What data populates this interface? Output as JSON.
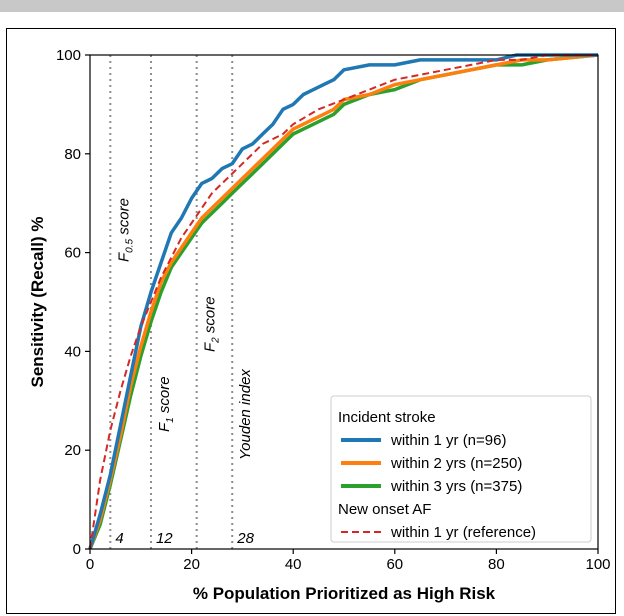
{
  "chart_data": {
    "type": "line",
    "xlabel": "% Population Prioritized as High Risk",
    "ylabel": "Sensitivity (Recall) %",
    "xlim": [
      0,
      100
    ],
    "ylim": [
      0,
      100
    ],
    "xticks": [
      "0",
      "20",
      "40",
      "60",
      "80",
      "100"
    ],
    "yticks": [
      "0",
      "20",
      "40",
      "60",
      "80",
      "100"
    ],
    "grid": false,
    "legend_position": "bottom-right",
    "legend_groups": [
      "Incident stroke",
      "New onset AF"
    ],
    "colors": {
      "stroke_1yr": "#1f77b4",
      "stroke_2yr": "#ff7f0e",
      "stroke_3yr": "#2ca02c",
      "af_1yr": "#d62728",
      "threshold_lines": "#8c8c8c"
    },
    "thresholds": [
      {
        "x": 4,
        "value_label": "4",
        "metric_main": "F",
        "metric_sub": "0.5",
        "metric_rest": " score"
      },
      {
        "x": 12,
        "value_label": "12",
        "metric_main": "F",
        "metric_sub": "1",
        "metric_rest": " score"
      },
      {
        "x": 21,
        "value_label": "",
        "metric_main": "F",
        "metric_sub": "2",
        "metric_rest": " score"
      },
      {
        "x": 28,
        "value_label": "28",
        "metric_main": "Youden index",
        "metric_sub": "",
        "metric_rest": ""
      }
    ],
    "series": [
      {
        "name": "within 1 yr (n=96)",
        "group": "Incident stroke",
        "style": "solid",
        "x": [
          0,
          2,
          4,
          6,
          8,
          10,
          12,
          14,
          16,
          18,
          20,
          22,
          24,
          26,
          28,
          30,
          32,
          34,
          36,
          38,
          40,
          42,
          44,
          46,
          48,
          50,
          55,
          60,
          65,
          70,
          75,
          80,
          84,
          90,
          100
        ],
        "y": [
          0,
          7,
          15,
          25,
          35,
          45,
          52,
          58,
          64,
          67,
          71,
          74,
          75,
          77,
          78,
          81,
          82,
          84,
          86,
          89,
          90,
          92,
          93,
          94,
          95,
          97,
          98,
          98,
          99,
          99,
          99,
          99,
          100,
          100,
          100
        ]
      },
      {
        "name": "within 2 yrs (n=250)",
        "group": "Incident stroke",
        "style": "solid",
        "x": [
          0,
          2,
          4,
          6,
          8,
          10,
          12,
          14,
          16,
          18,
          20,
          22,
          24,
          26,
          28,
          30,
          32,
          34,
          36,
          38,
          40,
          42,
          44,
          46,
          48,
          50,
          55,
          60,
          65,
          70,
          75,
          80,
          85,
          90,
          100
        ],
        "y": [
          0,
          6,
          14,
          23,
          33,
          41,
          48,
          54,
          58,
          61,
          64,
          67,
          69,
          71,
          73,
          75,
          77,
          79,
          81,
          83,
          85,
          86,
          87,
          88,
          89,
          91,
          92,
          94,
          95,
          96,
          97,
          98,
          99,
          99,
          100
        ]
      },
      {
        "name": "within 3 yrs (n=375)",
        "group": "Incident stroke",
        "style": "solid",
        "x": [
          0,
          2,
          4,
          6,
          8,
          10,
          12,
          14,
          16,
          18,
          20,
          22,
          24,
          26,
          28,
          30,
          32,
          34,
          36,
          38,
          40,
          42,
          44,
          46,
          48,
          50,
          55,
          60,
          65,
          70,
          75,
          80,
          85,
          90,
          100
        ],
        "y": [
          0,
          5,
          13,
          22,
          31,
          39,
          46,
          52,
          57,
          60,
          63,
          66,
          68,
          70,
          72,
          74,
          76,
          78,
          80,
          82,
          84,
          85,
          86,
          87,
          88,
          90,
          92,
          93,
          95,
          96,
          97,
          98,
          98,
          99,
          100
        ]
      },
      {
        "name": "within 1 yr (reference)",
        "group": "New onset AF",
        "style": "dashed",
        "x": [
          0,
          2,
          4,
          6,
          8,
          10,
          12,
          14,
          16,
          18,
          20,
          22,
          24,
          26,
          28,
          30,
          32,
          34,
          36,
          38,
          40,
          45,
          50,
          55,
          60,
          65,
          70,
          75,
          80,
          85,
          90,
          95,
          100
        ],
        "y": [
          0,
          14,
          24,
          32,
          39,
          45,
          50,
          55,
          59,
          63,
          66,
          69,
          72,
          74,
          76,
          78,
          80,
          82,
          83,
          84,
          86,
          89,
          91,
          93,
          95,
          96,
          97,
          98,
          99,
          99,
          100,
          100,
          100
        ]
      }
    ]
  }
}
